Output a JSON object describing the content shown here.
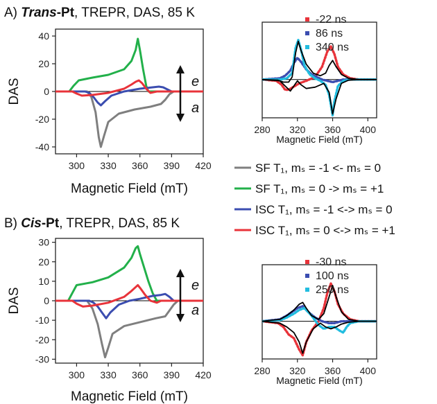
{
  "panel_a": {
    "title_prefix": "A) ",
    "title_em": "Trans",
    "title_mid": "-Pt",
    "title_rest": ", TREPR, DAS, 85 K"
  },
  "panel_b": {
    "title_prefix": "B) ",
    "title_em": "Cis",
    "title_mid": "-Pt",
    "title_rest": ", TREPR, DAS, 85 K"
  },
  "arrow_labels": {
    "up": "e",
    "down": "a"
  },
  "legend_main": [
    {
      "label": "SF T₁,  mₛ = -1  <- mₛ = 0",
      "color": "#7f7f7f"
    },
    {
      "label": "SF T₁,  mₛ = 0   -> mₛ = +1",
      "color": "#22b04a"
    },
    {
      "label": "ISC T₁, mₛ = -1 <-> mₛ = 0",
      "color": "#3b4db0"
    },
    {
      "label": "ISC T₁, mₛ = 0  <-> mₛ = +1",
      "color": "#e8333a"
    }
  ],
  "chart_data": [
    {
      "id": "a-das",
      "type": "line",
      "xlabel": "Magnetic Field (mT)",
      "ylabel": "DAS",
      "xlim": [
        280,
        420
      ],
      "ylim": [
        -45,
        45
      ],
      "xticks": [
        300,
        330,
        360,
        390,
        420
      ],
      "yticks": [
        40,
        20,
        0,
        -20,
        -40
      ],
      "series": [
        {
          "color": "#7f7f7f",
          "x": [
            280,
            310,
            314,
            318,
            321,
            323,
            326,
            330,
            340,
            355,
            370,
            380,
            384,
            388,
            392,
            420
          ],
          "y": [
            0,
            0,
            -4,
            -15,
            -33,
            -40,
            -32,
            -22,
            -16,
            -13,
            -11,
            -9,
            -6,
            -2,
            0,
            0
          ]
        },
        {
          "color": "#22b04a",
          "x": [
            280,
            293,
            297,
            302,
            315,
            330,
            345,
            352,
            356,
            358,
            360,
            363,
            366,
            368,
            420
          ],
          "y": [
            0,
            0,
            4,
            8,
            10,
            12,
            16,
            22,
            30,
            38,
            30,
            16,
            4,
            0,
            0
          ]
        },
        {
          "color": "#3b4db0",
          "x": [
            280,
            308,
            312,
            316,
            320,
            323,
            327,
            333,
            345,
            360,
            372,
            378,
            382,
            386,
            390,
            420
          ],
          "y": [
            0,
            0,
            -1,
            -4,
            -8,
            -10,
            -7,
            -3,
            0,
            2,
            3,
            3.5,
            3,
            1.5,
            0,
            0
          ]
        },
        {
          "color": "#e8333a",
          "x": [
            280,
            296,
            300,
            305,
            315,
            330,
            345,
            352,
            356,
            359,
            362,
            366,
            370,
            373,
            376,
            420
          ],
          "y": [
            0,
            0,
            -1.5,
            -3,
            -2.5,
            -1,
            2,
            5,
            7,
            8,
            6,
            2,
            -1,
            -0.5,
            0,
            0
          ]
        }
      ]
    },
    {
      "id": "a-trepr",
      "type": "line",
      "xlabel": "Magnetic Field (mT)",
      "ylabel": "",
      "xlim": [
        280,
        410
      ],
      "ylim": [
        -60,
        90
      ],
      "xticks": [
        280,
        320,
        360,
        400
      ],
      "legend": [
        {
          "label": "-22 ns",
          "color": "#e8333a"
        },
        {
          "label": "86 ns",
          "color": "#3b4db0"
        },
        {
          "label": "340 ns",
          "color": "#22bde0"
        }
      ],
      "series": [
        {
          "name": "-22 ns",
          "color": "#e8333a",
          "x": [
            280,
            296,
            302,
            306,
            310,
            315,
            322,
            330,
            340,
            348,
            354,
            358,
            362,
            366,
            372,
            380,
            390,
            400,
            410
          ],
          "y": [
            0,
            -2,
            -8,
            -16,
            -16,
            -12,
            -6,
            -2,
            4,
            20,
            44,
            52,
            40,
            20,
            8,
            2,
            0,
            0,
            0
          ]
        },
        {
          "name": "86 ns",
          "color": "#3b4db0",
          "x": [
            280,
            300,
            306,
            312,
            316,
            320,
            324,
            330,
            336,
            342,
            348,
            354,
            360,
            366,
            372,
            380,
            390,
            400,
            410
          ],
          "y": [
            0,
            2,
            6,
            14,
            26,
            34,
            28,
            16,
            8,
            4,
            0,
            -2,
            -4,
            -2,
            0,
            0,
            0,
            0,
            0
          ]
        },
        {
          "name": "340 ns",
          "color": "#22bde0",
          "x": [
            280,
            300,
            308,
            314,
            318,
            321,
            324,
            328,
            334,
            340,
            346,
            352,
            356,
            360,
            362,
            366,
            372,
            380,
            390,
            400,
            410
          ],
          "y": [
            0,
            0,
            2,
            10,
            50,
            62,
            48,
            22,
            8,
            2,
            -2,
            -8,
            -24,
            -56,
            -34,
            -10,
            -2,
            0,
            0,
            0,
            0
          ]
        },
        {
          "name": "fit-1",
          "color": "#000000",
          "x": [
            280,
            298,
            304,
            310,
            314,
            318,
            321,
            324,
            330,
            338,
            346,
            352,
            356,
            360,
            364,
            370,
            378,
            390,
            400,
            410
          ],
          "y": [
            0,
            -1,
            -4,
            -4,
            4,
            42,
            60,
            46,
            24,
            10,
            6,
            10,
            22,
            30,
            20,
            8,
            2,
            0,
            0,
            0
          ]
        },
        {
          "name": "fit-2",
          "color": "#000000",
          "x": [
            280,
            300,
            306,
            312,
            316,
            320,
            324,
            330,
            340,
            350,
            356,
            360,
            364,
            370,
            378,
            390,
            400,
            410
          ],
          "y": [
            0,
            -2,
            -10,
            -18,
            -10,
            -2,
            -8,
            -14,
            -12,
            -6,
            -20,
            -54,
            -30,
            -6,
            -1,
            0,
            0,
            0
          ]
        }
      ]
    },
    {
      "id": "b-das",
      "type": "line",
      "xlabel": "Magnetic Field (mT)",
      "ylabel": "DAS",
      "xlim": [
        280,
        420
      ],
      "ylim": [
        -32,
        32
      ],
      "xticks": [
        300,
        330,
        360,
        390,
        420
      ],
      "yticks": [
        30,
        20,
        10,
        0,
        -10,
        -20,
        -30
      ],
      "series": [
        {
          "color": "#7f7f7f",
          "x": [
            280,
            310,
            315,
            320,
            324,
            327,
            330,
            334,
            345,
            360,
            375,
            384,
            388,
            392,
            396,
            420
          ],
          "y": [
            0,
            0,
            -4,
            -12,
            -22,
            -29,
            -24,
            -17,
            -13,
            -11,
            -9,
            -8,
            -5,
            -2,
            0,
            0
          ]
        },
        {
          "color": "#22b04a",
          "x": [
            280,
            292,
            296,
            300,
            315,
            330,
            345,
            352,
            356,
            358,
            360,
            364,
            368,
            372,
            376,
            420
          ],
          "y": [
            0,
            0,
            4,
            8,
            9.5,
            12,
            17,
            22,
            27,
            28,
            24,
            17,
            10,
            4,
            0,
            0
          ]
        },
        {
          "color": "#3b4db0",
          "x": [
            280,
            312,
            316,
            320,
            324,
            328,
            332,
            340,
            350,
            360,
            372,
            380,
            384,
            388,
            392,
            420
          ],
          "y": [
            0,
            0,
            -1,
            -3,
            -6,
            -9,
            -6,
            -2,
            0,
            1,
            2.5,
            3,
            3.5,
            2,
            0,
            0
          ]
        },
        {
          "color": "#e8333a",
          "x": [
            280,
            296,
            300,
            306,
            315,
            330,
            345,
            352,
            356,
            358,
            361,
            365,
            370,
            376,
            380,
            420
          ],
          "y": [
            0,
            0,
            -1.5,
            -3,
            -2.5,
            -1,
            2,
            5,
            7,
            8,
            6,
            3,
            0,
            -1,
            0,
            0
          ]
        }
      ]
    },
    {
      "id": "b-trepr",
      "type": "line",
      "xlabel": "Magnetic Field (mT)",
      "ylabel": "",
      "xlim": [
        280,
        410
      ],
      "ylim": [
        -40,
        60
      ],
      "xticks": [
        280,
        320,
        360,
        400
      ],
      "legend": [
        {
          "label": "-30 ns",
          "color": "#e8333a"
        },
        {
          "label": "100 ns",
          "color": "#3b4db0"
        },
        {
          "label": "250 ns",
          "color": "#22bde0"
        }
      ],
      "series": [
        {
          "name": "-30 ns",
          "color": "#e8333a",
          "x": [
            280,
            298,
            304,
            310,
            316,
            322,
            326,
            330,
            336,
            344,
            350,
            354,
            358,
            362,
            366,
            372,
            380,
            390,
            400,
            410
          ],
          "y": [
            0,
            -2,
            -6,
            -14,
            -18,
            -30,
            -36,
            -22,
            -10,
            0,
            14,
            30,
            40,
            32,
            18,
            8,
            2,
            0,
            0,
            0
          ]
        },
        {
          "name": "100 ns",
          "color": "#3b4db0",
          "x": [
            280,
            300,
            308,
            314,
            320,
            326,
            332,
            340,
            348,
            356,
            362,
            370,
            380,
            390,
            400,
            410
          ],
          "y": [
            0,
            2,
            6,
            10,
            14,
            16,
            10,
            4,
            0,
            -2,
            -2,
            0,
            0,
            0,
            0,
            0
          ]
        },
        {
          "name": "250 ns",
          "color": "#22bde0",
          "x": [
            280,
            300,
            308,
            316,
            322,
            328,
            336,
            344,
            350,
            356,
            362,
            368,
            372,
            376,
            380,
            390,
            400,
            410
          ],
          "y": [
            0,
            1,
            4,
            8,
            12,
            14,
            6,
            -4,
            -8,
            -6,
            -6,
            -10,
            -12,
            -6,
            -2,
            0,
            0,
            0
          ]
        },
        {
          "name": "fit-1",
          "color": "#000000",
          "x": [
            280,
            300,
            308,
            316,
            322,
            326,
            330,
            336,
            344,
            350,
            356,
            360,
            364,
            370,
            378,
            390,
            400,
            410
          ],
          "y": [
            0,
            2,
            6,
            12,
            18,
            20,
            14,
            6,
            2,
            8,
            26,
            38,
            26,
            10,
            2,
            0,
            0,
            0
          ]
        },
        {
          "name": "fit-2",
          "color": "#000000",
          "x": [
            280,
            300,
            308,
            316,
            322,
            326,
            330,
            338,
            346,
            352,
            358,
            364,
            370,
            378,
            390,
            400,
            410
          ],
          "y": [
            0,
            -2,
            -6,
            -12,
            -22,
            -34,
            -22,
            -8,
            -2,
            -6,
            -8,
            -6,
            -3,
            -1,
            0,
            0,
            0
          ]
        }
      ]
    }
  ]
}
